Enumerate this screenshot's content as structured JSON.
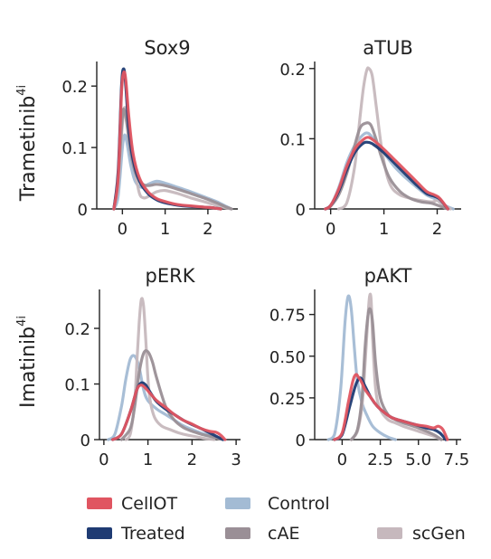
{
  "figure": {
    "legend": [
      {
        "key": "CellOT",
        "label": "CellOT",
        "color": "#e05561"
      },
      {
        "key": "Control",
        "label": "Control",
        "color": "#a3bbd4"
      },
      {
        "key": "Treated",
        "label": "Treated",
        "color": "#1f3b73"
      },
      {
        "key": "cAE",
        "label": "cAE",
        "color": "#9a8f96"
      },
      {
        "key": "scGen",
        "label": "scGen",
        "color": "#c6b8bd"
      }
    ],
    "row_labels": [
      "Trametinib",
      "Imatinib"
    ],
    "row_label_superscript": "4i"
  },
  "chart_data": [
    {
      "type": "line",
      "title": "Sox9",
      "xlim": [
        -0.6,
        2.7
      ],
      "ylim": [
        0,
        0.24
      ],
      "xticks": [
        0,
        1,
        2
      ],
      "yticks": [
        0,
        0.1,
        0.2
      ],
      "xticklabels": [
        "0",
        "1",
        "2"
      ],
      "yticklabels": [
        "0",
        "0.1",
        "0.2"
      ],
      "series": [
        {
          "key": "Control",
          "x": [
            -0.2,
            -0.1,
            0.0,
            0.05,
            0.1,
            0.2,
            0.3,
            0.45,
            0.6,
            0.8,
            1.0,
            1.3,
            1.6,
            1.9,
            2.2,
            2.4,
            2.55
          ],
          "y": [
            0,
            0.02,
            0.1,
            0.12,
            0.11,
            0.07,
            0.045,
            0.035,
            0.04,
            0.045,
            0.042,
            0.035,
            0.028,
            0.02,
            0.012,
            0.005,
            0
          ]
        },
        {
          "key": "scGen",
          "x": [
            -0.2,
            -0.1,
            0.0,
            0.05,
            0.1,
            0.2,
            0.3,
            0.4,
            0.5,
            0.6,
            0.8,
            1.0,
            1.3,
            1.6,
            1.9,
            2.2,
            2.4,
            2.55
          ],
          "y": [
            0,
            0.04,
            0.14,
            0.165,
            0.15,
            0.1,
            0.06,
            0.025,
            0.018,
            0.02,
            0.028,
            0.03,
            0.025,
            0.018,
            0.012,
            0.006,
            0.002,
            0
          ]
        },
        {
          "key": "cAE",
          "x": [
            -0.2,
            -0.1,
            0.0,
            0.05,
            0.1,
            0.2,
            0.3,
            0.45,
            0.6,
            0.8,
            1.0,
            1.3,
            1.6,
            1.9,
            2.2,
            2.4,
            2.55
          ],
          "y": [
            0,
            0.05,
            0.15,
            0.16,
            0.14,
            0.09,
            0.06,
            0.042,
            0.038,
            0.04,
            0.038,
            0.032,
            0.025,
            0.018,
            0.01,
            0.004,
            0
          ]
        },
        {
          "key": "Treated",
          "x": [
            -0.2,
            -0.1,
            -0.02,
            0.03,
            0.08,
            0.15,
            0.25,
            0.4,
            0.6,
            0.8,
            1.0,
            1.3,
            1.6,
            1.9,
            2.1,
            2.3
          ],
          "y": [
            0,
            0.06,
            0.2,
            0.228,
            0.2,
            0.13,
            0.08,
            0.045,
            0.025,
            0.015,
            0.01,
            0.006,
            0.004,
            0.003,
            0.002,
            0
          ]
        },
        {
          "key": "CellOT",
          "x": [
            -0.2,
            -0.1,
            -0.02,
            0.03,
            0.08,
            0.15,
            0.25,
            0.4,
            0.6,
            0.8,
            1.0,
            1.3,
            1.6,
            1.9,
            2.1,
            2.3
          ],
          "y": [
            0,
            0.05,
            0.19,
            0.222,
            0.21,
            0.15,
            0.09,
            0.05,
            0.028,
            0.017,
            0.012,
            0.007,
            0.005,
            0.003,
            0.002,
            0
          ]
        }
      ]
    },
    {
      "type": "line",
      "title": "aTUB",
      "xlim": [
        -0.3,
        2.45
      ],
      "ylim": [
        0,
        0.21
      ],
      "xticks": [
        0,
        1,
        2
      ],
      "yticks": [
        0,
        0.1,
        0.2
      ],
      "xticklabels": [
        "0",
        "1",
        "2"
      ],
      "yticklabels": [
        "0",
        "0.1",
        "0.2"
      ],
      "series": [
        {
          "key": "Control",
          "x": [
            -0.1,
            0.0,
            0.15,
            0.3,
            0.45,
            0.6,
            0.7,
            0.8,
            1.0,
            1.2,
            1.4,
            1.6,
            1.8,
            2.0,
            2.15,
            2.3
          ],
          "y": [
            0,
            0.005,
            0.03,
            0.065,
            0.09,
            0.105,
            0.108,
            0.1,
            0.08,
            0.06,
            0.045,
            0.032,
            0.02,
            0.013,
            0.005,
            0
          ]
        },
        {
          "key": "scGen",
          "x": [
            0.15,
            0.3,
            0.45,
            0.55,
            0.62,
            0.68,
            0.72,
            0.78,
            0.85,
            0.95,
            1.05,
            1.15,
            1.3,
            1.5,
            1.7,
            1.9,
            2.0,
            2.1,
            2.25
          ],
          "y": [
            0,
            0.008,
            0.06,
            0.13,
            0.175,
            0.198,
            0.2,
            0.19,
            0.15,
            0.09,
            0.05,
            0.03,
            0.02,
            0.015,
            0.012,
            0.01,
            0.012,
            0.006,
            0
          ]
        },
        {
          "key": "cAE",
          "x": [
            -0.1,
            0.0,
            0.15,
            0.3,
            0.45,
            0.55,
            0.65,
            0.75,
            0.85,
            0.95,
            1.1,
            1.3,
            1.5,
            1.7,
            1.9,
            2.05,
            2.2
          ],
          "y": [
            0,
            0.004,
            0.02,
            0.05,
            0.09,
            0.115,
            0.122,
            0.12,
            0.1,
            0.075,
            0.045,
            0.025,
            0.015,
            0.01,
            0.008,
            0.004,
            0
          ]
        },
        {
          "key": "Treated",
          "x": [
            -0.1,
            0.0,
            0.15,
            0.3,
            0.45,
            0.6,
            0.7,
            0.8,
            1.0,
            1.2,
            1.4,
            1.6,
            1.8,
            1.95,
            2.05,
            2.2
          ],
          "y": [
            0,
            0.005,
            0.025,
            0.055,
            0.08,
            0.093,
            0.095,
            0.092,
            0.08,
            0.065,
            0.05,
            0.035,
            0.022,
            0.018,
            0.014,
            0
          ]
        },
        {
          "key": "CellOT",
          "x": [
            -0.1,
            0.0,
            0.15,
            0.3,
            0.45,
            0.6,
            0.7,
            0.8,
            1.0,
            1.2,
            1.4,
            1.6,
            1.8,
            1.95,
            2.05,
            2.2
          ],
          "y": [
            0,
            0.005,
            0.028,
            0.06,
            0.085,
            0.098,
            0.102,
            0.098,
            0.085,
            0.07,
            0.055,
            0.04,
            0.025,
            0.02,
            0.015,
            0
          ]
        }
      ]
    },
    {
      "type": "line",
      "title": "pERK",
      "xlim": [
        -0.1,
        3.1
      ],
      "ylim": [
        0,
        0.27
      ],
      "xticks": [
        0,
        1,
        2,
        3
      ],
      "yticks": [
        0,
        0.1,
        0.2
      ],
      "xticklabels": [
        "0",
        "1",
        "2",
        "3"
      ],
      "yticklabels": [
        "0",
        "0.1",
        "0.2"
      ],
      "series": [
        {
          "key": "Control",
          "x": [
            0.1,
            0.25,
            0.4,
            0.5,
            0.6,
            0.7,
            0.8,
            0.9,
            1.0,
            1.2,
            1.4,
            1.6,
            1.8,
            2.0,
            2.2,
            2.4,
            2.6,
            2.7
          ],
          "y": [
            0,
            0.01,
            0.06,
            0.11,
            0.145,
            0.15,
            0.13,
            0.09,
            0.07,
            0.055,
            0.045,
            0.035,
            0.025,
            0.018,
            0.012,
            0.007,
            0.003,
            0
          ]
        },
        {
          "key": "scGen",
          "x": [
            0.5,
            0.6,
            0.7,
            0.75,
            0.8,
            0.85,
            0.9,
            0.95,
            1.0,
            1.05,
            1.15,
            1.3,
            1.5,
            1.7,
            1.9,
            2.1,
            2.3,
            2.5
          ],
          "y": [
            0,
            0.01,
            0.07,
            0.14,
            0.21,
            0.252,
            0.24,
            0.18,
            0.11,
            0.07,
            0.04,
            0.025,
            0.018,
            0.012,
            0.008,
            0.005,
            0.002,
            0
          ]
        },
        {
          "key": "cAE",
          "x": [
            0.4,
            0.6,
            0.7,
            0.8,
            0.9,
            1.0,
            1.1,
            1.2,
            1.4,
            1.6,
            1.8,
            2.0,
            2.2,
            2.4,
            2.6,
            2.7
          ],
          "y": [
            0,
            0.02,
            0.06,
            0.12,
            0.155,
            0.158,
            0.14,
            0.11,
            0.06,
            0.035,
            0.022,
            0.015,
            0.01,
            0.006,
            0.002,
            0
          ]
        },
        {
          "key": "Treated",
          "x": [
            0.2,
            0.4,
            0.6,
            0.75,
            0.85,
            0.95,
            1.05,
            1.2,
            1.4,
            1.6,
            1.8,
            2.0,
            2.2,
            2.4,
            2.6,
            2.7
          ],
          "y": [
            0,
            0.01,
            0.05,
            0.09,
            0.102,
            0.098,
            0.085,
            0.068,
            0.055,
            0.045,
            0.035,
            0.027,
            0.02,
            0.012,
            0.004,
            0
          ]
        },
        {
          "key": "CellOT",
          "x": [
            0.2,
            0.4,
            0.6,
            0.75,
            0.85,
            0.95,
            1.05,
            1.2,
            1.4,
            1.6,
            1.8,
            2.0,
            2.2,
            2.4,
            2.55,
            2.65,
            2.75
          ],
          "y": [
            0,
            0.01,
            0.05,
            0.09,
            0.098,
            0.092,
            0.083,
            0.07,
            0.058,
            0.045,
            0.035,
            0.028,
            0.02,
            0.015,
            0.013,
            0.008,
            0
          ]
        }
      ]
    },
    {
      "type": "line",
      "title": "pAKT",
      "xlim": [
        -1.8,
        7.8
      ],
      "ylim": [
        0,
        0.9
      ],
      "xticks": [
        0,
        2.5,
        5.0,
        7.5
      ],
      "yticks": [
        0,
        0.25,
        0.5,
        0.75
      ],
      "xticklabels": [
        "0",
        "2.5",
        "5.0",
        "7.5"
      ],
      "yticklabels": [
        "0",
        "0.25",
        "0.50",
        "0.75"
      ],
      "series": [
        {
          "key": "Control",
          "x": [
            -0.9,
            -0.5,
            -0.1,
            0.2,
            0.4,
            0.6,
            0.8,
            1.0,
            1.3,
            1.6,
            2.0,
            2.5,
            3.0,
            3.5
          ],
          "y": [
            0,
            0.03,
            0.3,
            0.72,
            0.86,
            0.78,
            0.55,
            0.35,
            0.22,
            0.15,
            0.08,
            0.04,
            0.015,
            0
          ]
        },
        {
          "key": "scGen",
          "x": [
            0.6,
            1.0,
            1.3,
            1.5,
            1.7,
            1.8,
            1.9,
            2.0,
            2.2,
            2.5,
            3.0,
            3.5,
            4.0,
            5.0,
            6.0,
            6.5
          ],
          "y": [
            0,
            0.05,
            0.2,
            0.45,
            0.75,
            0.86,
            0.84,
            0.6,
            0.3,
            0.18,
            0.12,
            0.1,
            0.08,
            0.05,
            0.02,
            0
          ]
        },
        {
          "key": "cAE",
          "x": [
            0.6,
            1.0,
            1.3,
            1.5,
            1.7,
            1.85,
            2.0,
            2.2,
            2.5,
            3.0,
            3.5,
            4.0,
            5.0,
            6.0,
            6.5
          ],
          "y": [
            0,
            0.06,
            0.25,
            0.55,
            0.75,
            0.78,
            0.7,
            0.45,
            0.25,
            0.15,
            0.12,
            0.1,
            0.07,
            0.03,
            0
          ]
        },
        {
          "key": "Treated",
          "x": [
            -0.5,
            0.0,
            0.5,
            0.9,
            1.2,
            1.5,
            1.9,
            2.3,
            2.8,
            3.3,
            4.0,
            4.8,
            5.5,
            6.0,
            6.4,
            6.8
          ],
          "y": [
            0,
            0.03,
            0.2,
            0.33,
            0.37,
            0.32,
            0.25,
            0.2,
            0.16,
            0.13,
            0.11,
            0.09,
            0.07,
            0.06,
            0.04,
            0
          ]
        },
        {
          "key": "CellOT",
          "x": [
            -0.5,
            0.0,
            0.4,
            0.7,
            0.9,
            1.1,
            1.3,
            1.5,
            1.9,
            2.3,
            2.8,
            3.3,
            4.0,
            4.8,
            5.5,
            6.0,
            6.3,
            6.6,
            6.9
          ],
          "y": [
            0,
            0.04,
            0.22,
            0.35,
            0.39,
            0.37,
            0.34,
            0.3,
            0.25,
            0.2,
            0.16,
            0.13,
            0.11,
            0.09,
            0.08,
            0.07,
            0.08,
            0.06,
            0
          ]
        }
      ]
    }
  ]
}
